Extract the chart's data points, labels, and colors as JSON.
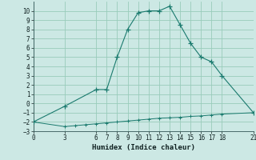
{
  "xlabel": "Humidex (Indice chaleur)",
  "bg_color": "#cce8e4",
  "grid_color": "#99ccbb",
  "line_color": "#1a7a6e",
  "x_upper": [
    0,
    3,
    6,
    7,
    8,
    9,
    10,
    11,
    12,
    13,
    14,
    15,
    16,
    17,
    18,
    21
  ],
  "y_upper": [
    -2,
    -0.3,
    1.5,
    1.5,
    5,
    8,
    9.8,
    10,
    10,
    10.5,
    8.5,
    6.5,
    5,
    4.5,
    3,
    -1
  ],
  "x_lower": [
    0,
    3,
    4,
    5,
    6,
    7,
    8,
    9,
    10,
    11,
    12,
    13,
    14,
    15,
    16,
    17,
    18,
    21
  ],
  "y_lower": [
    -2,
    -2.5,
    -2.4,
    -2.3,
    -2.2,
    -2.1,
    -2.0,
    -1.9,
    -1.8,
    -1.7,
    -1.6,
    -1.55,
    -1.5,
    -1.4,
    -1.35,
    -1.25,
    -1.15,
    -1
  ],
  "xlim": [
    0,
    21
  ],
  "ylim": [
    -3,
    11
  ],
  "xticks": [
    0,
    3,
    6,
    7,
    8,
    9,
    10,
    11,
    12,
    13,
    14,
    15,
    16,
    17,
    18,
    21
  ],
  "yticks": [
    -3,
    -2,
    -1,
    0,
    1,
    2,
    3,
    4,
    5,
    6,
    7,
    8,
    9,
    10
  ]
}
